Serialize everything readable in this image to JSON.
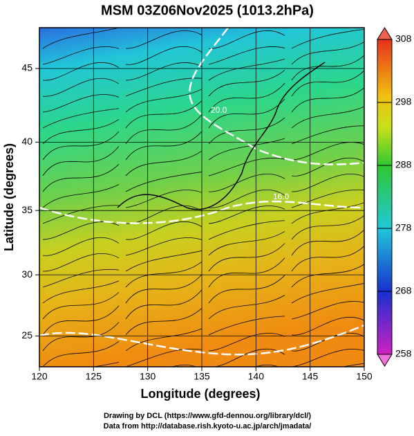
{
  "title": "MSM 03Z06Nov2025 (1013.2hPa)",
  "x_axis": {
    "label": "Longitude (degrees)",
    "lim": [
      120,
      150
    ],
    "ticks": [
      120,
      125,
      130,
      135,
      140,
      145,
      150
    ]
  },
  "y_axis": {
    "label": "Latitude  (degrees)",
    "lim": [
      22.4,
      47.6
    ],
    "ticks": [
      25,
      30,
      35,
      40,
      45
    ],
    "projection": "mercator"
  },
  "colorbar": {
    "lim": [
      258,
      308
    ],
    "ticks": [
      258,
      268,
      278,
      288,
      298,
      308
    ]
  },
  "contour_labels": [
    "20.0",
    "16.0"
  ],
  "credits": [
    "Drawing by DCL (https://www.gfd-dennou.org/library/dcl/)",
    "Data from http://database.rish.kyoto-u.ac.jp/arch/jmadata/"
  ]
}
